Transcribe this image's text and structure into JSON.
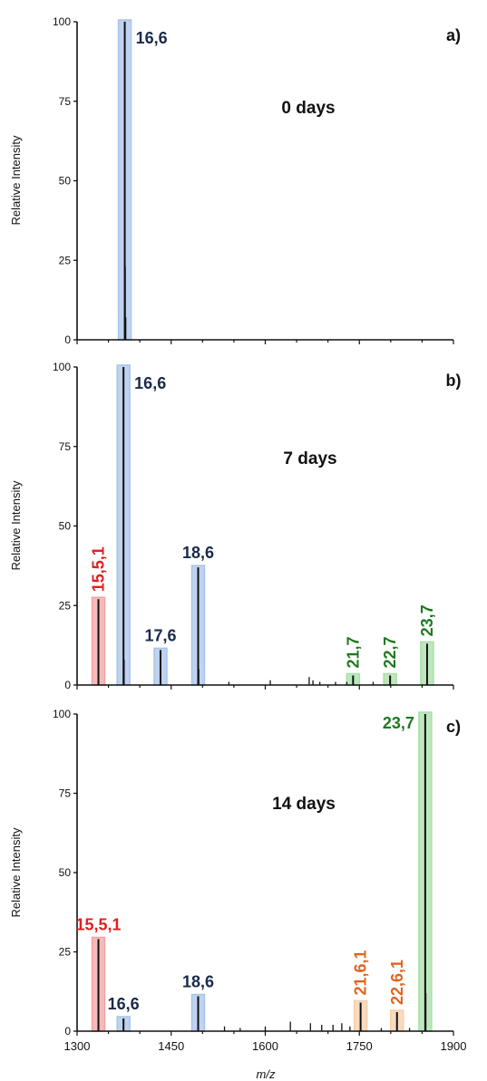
{
  "chart_data": [
    {
      "type": "bar",
      "panel_label": "a)",
      "annotation": "0 days",
      "ylabel": "Relative Intensity",
      "ylim": [
        0,
        100
      ],
      "yticks": [
        0,
        25,
        50,
        75,
        100
      ],
      "xlim": [
        1300,
        1900
      ],
      "highlighted_peaks": [
        {
          "x": 1376,
          "value": 100,
          "label": "16,6",
          "label_color": "#1a2a4a",
          "band_color": "#a9c4ea"
        }
      ],
      "minor_peaks": [
        {
          "x": 1376.8,
          "value": 23
        },
        {
          "x": 1377.6,
          "value": 7
        }
      ]
    },
    {
      "type": "bar",
      "panel_label": "b)",
      "annotation": "7 days",
      "ylabel": "Relative Intensity",
      "ylim": [
        0,
        100
      ],
      "yticks": [
        0,
        25,
        50,
        75,
        100
      ],
      "xlim": [
        1300,
        1900
      ],
      "highlighted_peaks": [
        {
          "x": 1334,
          "value": 27,
          "label": "15,5,1",
          "label_color": "#e02020",
          "band_color": "#f2a3a3",
          "label_vertical": true
        },
        {
          "x": 1374,
          "value": 100,
          "label": "16,6",
          "label_color": "#1a2a4a",
          "band_color": "#a9c4ea"
        },
        {
          "x": 1433,
          "value": 11,
          "label": "17,6",
          "label_color": "#1a2a4a",
          "band_color": "#a9c4ea"
        },
        {
          "x": 1493,
          "value": 37,
          "label": "18,6",
          "label_color": "#1a2a4a",
          "band_color": "#a9c4ea"
        },
        {
          "x": 1740,
          "value": 3,
          "label": "21,7",
          "label_color": "#1e7a1e",
          "band_color": "#a8dfa8",
          "label_vertical": true
        },
        {
          "x": 1799,
          "value": 3,
          "label": "22,7",
          "label_color": "#1e7a1e",
          "band_color": "#a8dfa8",
          "label_vertical": true
        },
        {
          "x": 1858,
          "value": 13,
          "label": "23,7",
          "label_color": "#1e7a1e",
          "band_color": "#a8dfa8",
          "label_vertical": true
        }
      ],
      "minor_peaks": [
        {
          "x": 1375,
          "value": 8
        },
        {
          "x": 1494,
          "value": 5
        },
        {
          "x": 1542,
          "value": 1
        },
        {
          "x": 1608,
          "value": 1.5
        },
        {
          "x": 1670,
          "value": 2.5
        },
        {
          "x": 1676,
          "value": 1.5
        },
        {
          "x": 1687,
          "value": 1
        },
        {
          "x": 1712,
          "value": 1
        },
        {
          "x": 1730,
          "value": 1
        },
        {
          "x": 1772,
          "value": 1
        }
      ]
    },
    {
      "type": "bar",
      "panel_label": "c)",
      "annotation": "14 days",
      "ylabel": "Relative Intensity",
      "xlabel": "m/z",
      "ylim": [
        0,
        100
      ],
      "yticks": [
        0,
        25,
        50,
        75,
        100
      ],
      "xlim": [
        1300,
        1900
      ],
      "xticks": [
        1300,
        1450,
        1600,
        1750,
        1900
      ],
      "highlighted_peaks": [
        {
          "x": 1334,
          "value": 29,
          "label": "15,5,1",
          "label_color": "#e02020",
          "band_color": "#f2a3a3"
        },
        {
          "x": 1374,
          "value": 4,
          "label": "16,6",
          "label_color": "#1a2a4a",
          "band_color": "#a9c4ea"
        },
        {
          "x": 1493,
          "value": 11,
          "label": "18,6",
          "label_color": "#1a2a4a",
          "band_color": "#a9c4ea"
        },
        {
          "x": 1752,
          "value": 9,
          "label": "21,6,1",
          "label_color": "#e0641e",
          "band_color": "#f6cfa8",
          "label_vertical": true
        },
        {
          "x": 1810,
          "value": 6,
          "label": "22,6,1",
          "label_color": "#e0641e",
          "band_color": "#f6cfa8",
          "label_vertical": true
        },
        {
          "x": 1855,
          "value": 100,
          "label": "23,7",
          "label_color": "#1e7a1e",
          "band_color": "#a8dfa8",
          "label_side": "left"
        }
      ],
      "minor_peaks": [
        {
          "x": 1856,
          "value": 12
        },
        {
          "x": 1535,
          "value": 1.5
        },
        {
          "x": 1560,
          "value": 1
        },
        {
          "x": 1600,
          "value": 1.5
        },
        {
          "x": 1640,
          "value": 3
        },
        {
          "x": 1672,
          "value": 2.5
        },
        {
          "x": 1690,
          "value": 2
        },
        {
          "x": 1708,
          "value": 2
        },
        {
          "x": 1722,
          "value": 2.5
        },
        {
          "x": 1735,
          "value": 1.5
        },
        {
          "x": 1785,
          "value": 1
        },
        {
          "x": 1830,
          "value": 1
        }
      ]
    }
  ]
}
